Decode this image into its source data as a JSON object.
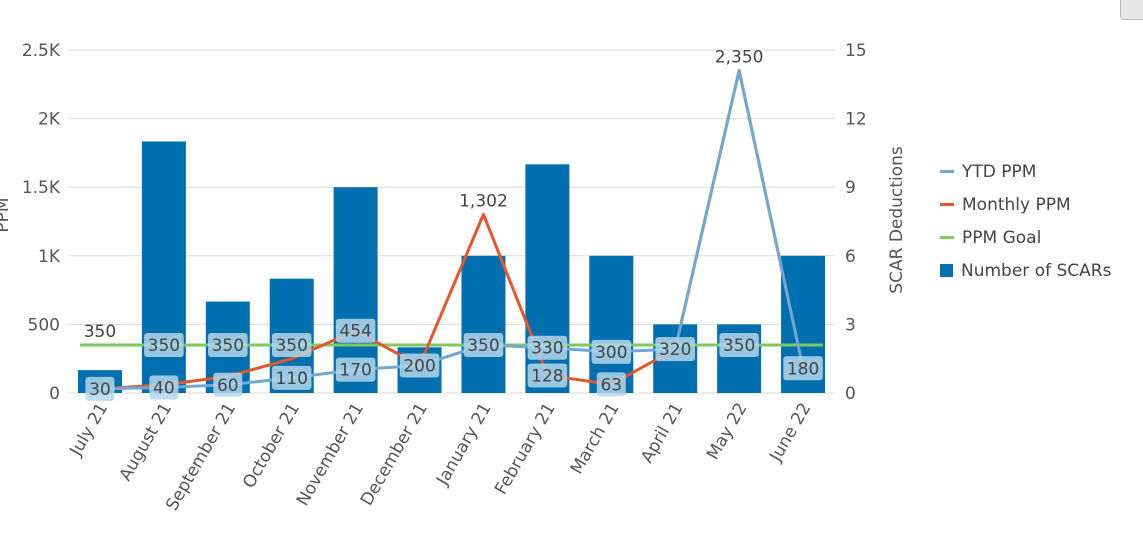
{
  "chart_data": {
    "type": "bar+line",
    "categories": [
      "July 21",
      "August 21",
      "September 21",
      "October 21",
      "November 21",
      "December 21",
      "January 21",
      "February 21",
      "March 21",
      "April 21",
      "May 22",
      "June 22"
    ],
    "left_axis": {
      "title": "PPM",
      "range": [
        0,
        2500
      ],
      "ticks": [
        0,
        500,
        1000,
        1500,
        2000,
        2500
      ],
      "tick_labels": [
        "0",
        "500",
        "1K",
        "1.5K",
        "2K",
        "2.5K"
      ]
    },
    "right_axis": {
      "title": "SCAR Deductions",
      "range": [
        0,
        15
      ],
      "ticks": [
        0,
        3,
        6,
        9,
        12,
        15
      ],
      "tick_labels": [
        "0",
        "3",
        "6",
        "9",
        "12",
        "15"
      ]
    },
    "grid": true,
    "legend_position": "right",
    "series": [
      {
        "name": "YTD PPM",
        "type": "line",
        "axis": "left",
        "color": "#6fa8d6",
        "values": [
          30,
          40,
          60,
          110,
          170,
          200,
          350,
          330,
          300,
          320,
          2350,
          180
        ]
      },
      {
        "name": "Monthly PPM",
        "type": "line",
        "axis": "left",
        "color": "#e4572e",
        "values": [
          30,
          60,
          120,
          250,
          454,
          200,
          1302,
          128,
          63,
          320,
          2350,
          180
        ]
      },
      {
        "name": "PPM Goal",
        "type": "line",
        "axis": "left",
        "color": "#7dc95e",
        "values": [
          350,
          350,
          350,
          350,
          350,
          350,
          350,
          350,
          350,
          350,
          350,
          350
        ]
      },
      {
        "name": "Number of SCARs",
        "type": "bar",
        "axis": "right",
        "color": "#006fb0",
        "values": [
          1,
          11,
          4,
          5,
          9,
          2,
          6,
          10,
          6,
          3,
          3,
          6
        ]
      }
    ],
    "data_labels": [
      {
        "cat": 0,
        "value": 350,
        "text": "350",
        "boxed": false
      },
      {
        "cat": 1,
        "value": 350,
        "text": "350",
        "boxed": true
      },
      {
        "cat": 2,
        "value": 350,
        "text": "350",
        "boxed": true
      },
      {
        "cat": 3,
        "value": 350,
        "text": "350",
        "boxed": true
      },
      {
        "cat": 4,
        "value": 454,
        "text": "454",
        "boxed": true
      },
      {
        "cat": 6,
        "value": 350,
        "text": "350",
        "boxed": true
      },
      {
        "cat": 7,
        "value": 330,
        "text": "330",
        "boxed": true
      },
      {
        "cat": 8,
        "value": 300,
        "text": "300",
        "boxed": true
      },
      {
        "cat": 9,
        "value": 320,
        "text": "320",
        "boxed": true
      },
      {
        "cat": 10,
        "value": 350,
        "text": "350",
        "boxed": true
      },
      {
        "cat": 0,
        "value": 30,
        "text": "30",
        "boxed": true
      },
      {
        "cat": 1,
        "value": 40,
        "text": "40",
        "boxed": true
      },
      {
        "cat": 2,
        "value": 60,
        "text": "60",
        "boxed": true
      },
      {
        "cat": 3,
        "value": 110,
        "text": "110",
        "boxed": true
      },
      {
        "cat": 4,
        "value": 170,
        "text": "170",
        "boxed": true
      },
      {
        "cat": 5,
        "value": 200,
        "text": "200",
        "boxed": true
      },
      {
        "cat": 7,
        "value": 128,
        "text": "128",
        "boxed": true
      },
      {
        "cat": 8,
        "value": 63,
        "text": "63",
        "boxed": true
      },
      {
        "cat": 11,
        "value": 180,
        "text": "180",
        "boxed": true
      },
      {
        "cat": 6,
        "value": 1302,
        "text": "1,302",
        "boxed": false
      },
      {
        "cat": 10,
        "value": 2350,
        "text": "2,350",
        "boxed": false
      }
    ]
  }
}
